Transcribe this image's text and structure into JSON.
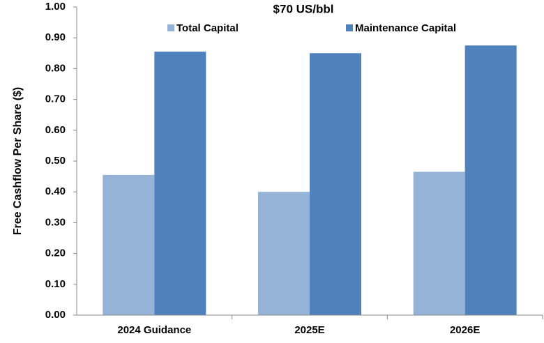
{
  "chart_data": {
    "type": "bar",
    "title": "$70 US/bbl",
    "y_label": "Free Cashflow Per Share ($)",
    "categories": [
      "2024 Guidance",
      "2025E",
      "2026E"
    ],
    "series": [
      {
        "name": "Total Capital",
        "color": "#95b3d7",
        "values": [
          0.455,
          0.4,
          0.465
        ]
      },
      {
        "name": "Maintenance Capital",
        "color": "#4f81bd",
        "values": [
          0.855,
          0.85,
          0.875
        ]
      }
    ],
    "ylim": [
      0,
      1
    ],
    "yticks": [
      {
        "value": 0,
        "label": "0.00"
      },
      {
        "value": 0.1,
        "label": "0.10"
      },
      {
        "value": 0.2,
        "label": "0.20"
      },
      {
        "value": 0.3,
        "label": "0.30"
      },
      {
        "value": 0.4,
        "label": "0.40"
      },
      {
        "value": 0.5,
        "label": "0.50"
      },
      {
        "value": 0.6,
        "label": "0.60"
      },
      {
        "value": 0.7,
        "label": "0.70"
      },
      {
        "value": 0.8,
        "label": "0.80"
      },
      {
        "value": 0.9,
        "label": "0.90"
      },
      {
        "value": 1,
        "label": "1.00"
      }
    ],
    "grid": false,
    "legend": "top"
  }
}
